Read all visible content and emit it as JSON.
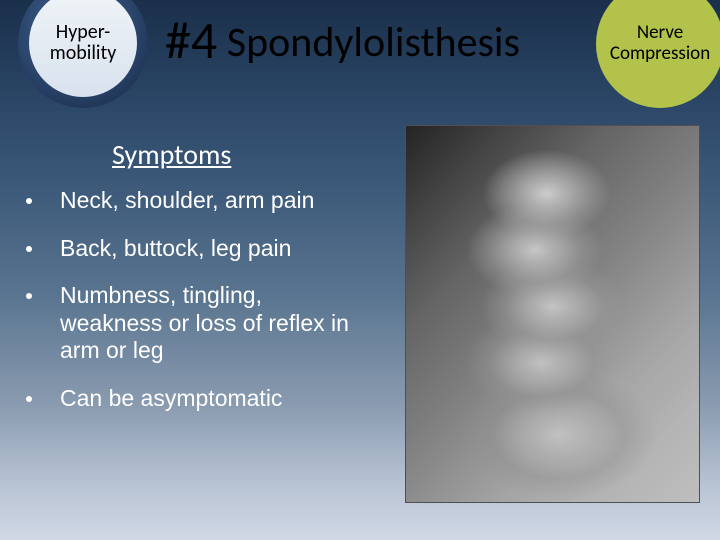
{
  "header": {
    "badge_left_line1": "Hyper-",
    "badge_left_line2": "mobility",
    "title_hash": "#4",
    "title_text": "Spondylolisthesis",
    "badge_right_line1": "Nerve",
    "badge_right_line2": "Compression"
  },
  "symptoms": {
    "heading": "Symptoms",
    "items": [
      "Neck, shoulder, arm pain",
      "Back, buttock, leg pain",
      "Numbness, tingling, weakness or loss of reflex in arm or leg",
      "Can be asymptomatic"
    ]
  },
  "colors": {
    "badge_right_bg": "#b3c24a",
    "text_light": "#ffffff",
    "text_dark": "#000000"
  }
}
